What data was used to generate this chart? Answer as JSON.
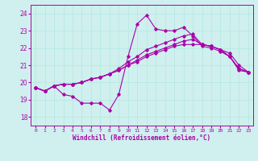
{
  "xlabel": "Windchill (Refroidissement éolien,°C)",
  "background_color": "#cff0ee",
  "line_color": "#aa00aa",
  "grid_color": "#b8e8e4",
  "xlim": [
    -0.5,
    23.5
  ],
  "ylim": [
    17.5,
    24.5
  ],
  "yticks": [
    18,
    19,
    20,
    21,
    22,
    23,
    24
  ],
  "xticks": [
    0,
    1,
    2,
    3,
    4,
    5,
    6,
    7,
    8,
    9,
    10,
    11,
    12,
    13,
    14,
    15,
    16,
    17,
    18,
    19,
    20,
    21,
    22,
    23
  ],
  "series": [
    [
      19.7,
      19.5,
      19.8,
      19.3,
      19.2,
      18.8,
      18.8,
      18.8,
      18.4,
      19.3,
      21.5,
      23.4,
      23.9,
      23.1,
      23.0,
      23.0,
      23.2,
      22.7,
      22.1,
      22.0,
      21.8,
      21.5,
      20.7,
      20.6
    ],
    [
      19.7,
      19.5,
      19.8,
      19.9,
      19.9,
      20.0,
      20.2,
      20.3,
      20.5,
      20.7,
      21.0,
      21.2,
      21.5,
      21.7,
      21.9,
      22.1,
      22.2,
      22.2,
      22.2,
      22.1,
      21.9,
      21.5,
      20.8,
      20.6
    ],
    [
      19.7,
      19.5,
      19.8,
      19.9,
      19.9,
      20.0,
      20.2,
      20.3,
      20.5,
      20.7,
      21.0,
      21.3,
      21.6,
      21.8,
      22.0,
      22.2,
      22.4,
      22.5,
      22.2,
      22.1,
      21.9,
      21.5,
      20.8,
      20.6
    ],
    [
      19.7,
      19.5,
      19.8,
      19.9,
      19.9,
      20.0,
      20.2,
      20.3,
      20.5,
      20.8,
      21.2,
      21.5,
      21.9,
      22.1,
      22.3,
      22.5,
      22.7,
      22.8,
      22.2,
      22.1,
      21.9,
      21.7,
      21.0,
      20.6
    ]
  ]
}
